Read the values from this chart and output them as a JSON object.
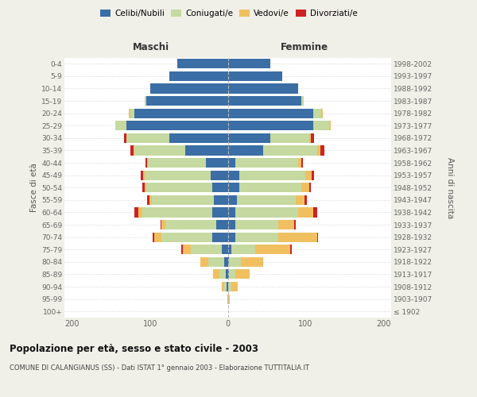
{
  "age_groups": [
    "100+",
    "95-99",
    "90-94",
    "85-89",
    "80-84",
    "75-79",
    "70-74",
    "65-69",
    "60-64",
    "55-59",
    "50-54",
    "45-49",
    "40-44",
    "35-39",
    "30-34",
    "25-29",
    "20-24",
    "15-19",
    "10-14",
    "5-9",
    "0-4"
  ],
  "birth_years": [
    "≤ 1902",
    "1903-1907",
    "1908-1912",
    "1913-1917",
    "1918-1922",
    "1923-1927",
    "1928-1932",
    "1933-1937",
    "1938-1942",
    "1943-1947",
    "1948-1952",
    "1953-1957",
    "1958-1962",
    "1963-1967",
    "1968-1972",
    "1973-1977",
    "1978-1982",
    "1983-1987",
    "1988-1992",
    "1993-1997",
    "1998-2002"
  ],
  "males_celibi": [
    0,
    0,
    2,
    3,
    5,
    8,
    20,
    15,
    20,
    18,
    20,
    22,
    28,
    55,
    75,
    130,
    120,
    105,
    100,
    75,
    65
  ],
  "males_coniugati": [
    0,
    0,
    3,
    8,
    20,
    40,
    65,
    65,
    90,
    80,
    85,
    85,
    75,
    65,
    55,
    15,
    5,
    2,
    0,
    0,
    0
  ],
  "males_vedovi": [
    0,
    1,
    3,
    8,
    10,
    10,
    10,
    5,
    5,
    3,
    2,
    2,
    1,
    1,
    0,
    0,
    2,
    0,
    0,
    0,
    0
  ],
  "males_divorziati": [
    0,
    0,
    0,
    0,
    0,
    2,
    2,
    1,
    5,
    3,
    3,
    3,
    2,
    4,
    3,
    0,
    0,
    0,
    0,
    0,
    0
  ],
  "females_nubili": [
    0,
    0,
    1,
    2,
    2,
    5,
    10,
    10,
    10,
    12,
    15,
    15,
    10,
    45,
    55,
    110,
    110,
    95,
    90,
    70,
    55
  ],
  "females_coniugate": [
    0,
    0,
    4,
    8,
    15,
    30,
    55,
    55,
    80,
    75,
    80,
    85,
    80,
    70,
    50,
    20,
    10,
    3,
    0,
    0,
    0
  ],
  "females_vedove": [
    1,
    3,
    8,
    18,
    28,
    45,
    50,
    20,
    20,
    12,
    10,
    8,
    5,
    4,
    2,
    2,
    2,
    0,
    0,
    0,
    0
  ],
  "females_divorziate": [
    0,
    0,
    0,
    0,
    0,
    2,
    1,
    2,
    5,
    3,
    2,
    3,
    2,
    5,
    4,
    0,
    0,
    0,
    0,
    0,
    0
  ],
  "colors_celibi": "#3a6ea5",
  "colors_coniugati": "#c5d9a0",
  "colors_vedovi": "#f0c060",
  "colors_divorziati": "#cc2222",
  "xlim": 210,
  "title": "Popolazione per età, sesso e stato civile - 2003",
  "subtitle": "COMUNE DI CALANGIANUS (SS) - Dati ISTAT 1° gennaio 2003 - Elaborazione TUTTITALIA.IT",
  "ylabel_left": "Fasce di età",
  "ylabel_right": "Anni di nascita",
  "label_maschi": "Maschi",
  "label_femmine": "Femmine",
  "bg_color": "#f0f0e8",
  "plot_bg": "#ffffff",
  "legend_labels": [
    "Celibi/Nubili",
    "Coniugati/e",
    "Vedovi/e",
    "Divorziati/e"
  ],
  "xticks": [
    -200,
    -100,
    0,
    100,
    200
  ]
}
